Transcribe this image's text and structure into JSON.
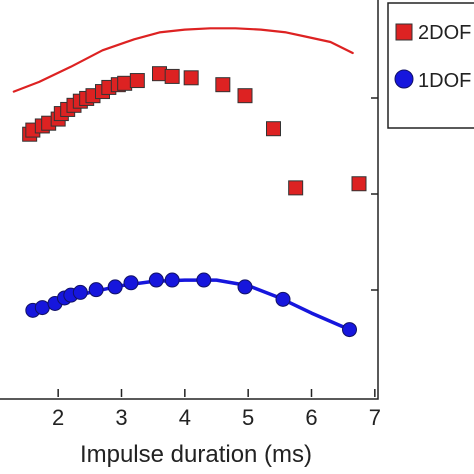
{
  "chart_data": {
    "type": "scatter",
    "xlabel": "Impulse duration (ms)",
    "ylabel": "",
    "title": "",
    "xlim": [
      1.05,
      7.05
    ],
    "x_ticks": [
      2,
      3,
      4,
      5,
      6,
      7
    ],
    "x_tick_labels": [
      "2",
      "3",
      "4",
      "5",
      "6",
      "7"
    ],
    "y_tick_count": 3,
    "grid": false,
    "legend_position": "right, outside plot",
    "series": [
      {
        "name": "2DOF",
        "marker": "square",
        "color": "#dd2222",
        "x": [
          1.55,
          1.6,
          1.75,
          1.85,
          2.0,
          2.05,
          2.15,
          2.25,
          2.35,
          2.45,
          2.55,
          2.7,
          2.8,
          2.95,
          3.05,
          3.25,
          3.6,
          3.8,
          4.1,
          4.6,
          4.95,
          5.4,
          5.75,
          6.75
        ],
        "y": [
          0.86,
          0.89,
          0.92,
          0.94,
          0.97,
          1.01,
          1.04,
          1.07,
          1.1,
          1.12,
          1.14,
          1.17,
          1.2,
          1.22,
          1.23,
          1.25,
          1.3,
          1.28,
          1.27,
          1.22,
          1.14,
          0.9,
          0.47,
          0.5
        ]
      },
      {
        "name": "1DOF",
        "marker": "circle",
        "color": "#1616dd",
        "x": [
          1.6,
          1.75,
          1.95,
          2.1,
          2.2,
          2.35,
          2.6,
          2.9,
          3.15,
          3.55,
          3.8,
          4.3,
          4.95,
          5.55,
          6.6
        ],
        "y": [
          -0.42,
          -0.4,
          -0.37,
          -0.33,
          -0.31,
          -0.29,
          -0.27,
          -0.25,
          -0.22,
          -0.2,
          -0.2,
          -0.2,
          -0.25,
          -0.34,
          -0.56
        ]
      }
    ],
    "lines": [
      {
        "color": "#dd2222",
        "x": [
          1.3,
          1.7,
          2.2,
          2.7,
          3.2,
          3.6,
          4.0,
          4.4,
          4.8,
          5.2,
          5.6,
          5.9,
          6.3,
          6.65
        ],
        "y": [
          1.17,
          1.24,
          1.35,
          1.47,
          1.55,
          1.6,
          1.62,
          1.63,
          1.63,
          1.62,
          1.6,
          1.57,
          1.53,
          1.45
        ]
      },
      {
        "color": "#1616dd",
        "x": [
          1.6,
          2.0,
          2.5,
          3.0,
          3.5,
          4.0,
          4.5,
          5.0,
          5.5,
          6.0,
          6.6
        ],
        "y": [
          -0.42,
          -0.36,
          -0.29,
          -0.24,
          -0.21,
          -0.2,
          -0.2,
          -0.24,
          -0.33,
          -0.44,
          -0.56
        ]
      }
    ]
  }
}
